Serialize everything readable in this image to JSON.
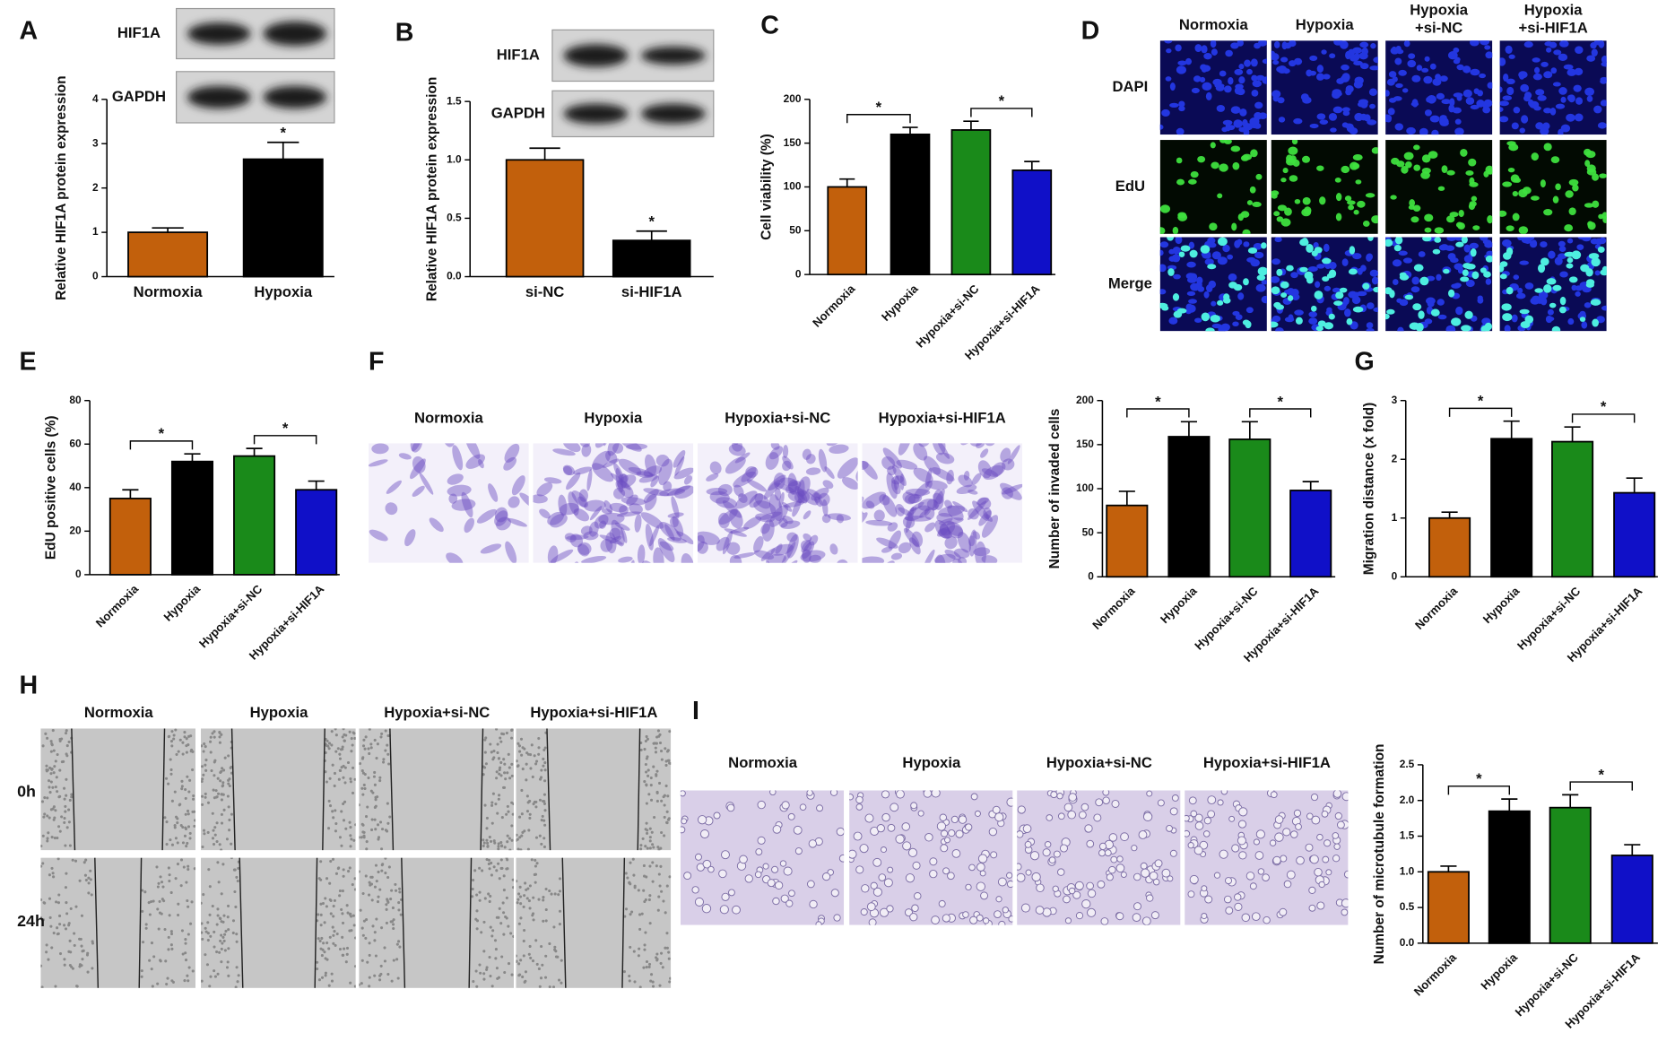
{
  "chart_data": [
    {
      "type": "bar",
      "ylabel": "Relative HIF1A protein expression",
      "categories": [
        "Normoxia",
        "Hypoxia"
      ],
      "values": [
        1.0,
        2.65
      ],
      "errors": [
        0.1,
        0.38
      ],
      "colors": [
        "#c2600c",
        "#000000"
      ],
      "ylim": [
        0,
        4
      ],
      "yticks": [
        0,
        1,
        2,
        3,
        4
      ],
      "annotations": [
        {
          "text": "*",
          "categories": [
            "Hypoxia"
          ]
        }
      ]
    },
    {
      "type": "bar",
      "ylabel": "Relative HIF1A protein expression",
      "categories": [
        "si-NC",
        "si-HIF1A"
      ],
      "values": [
        1.0,
        0.31
      ],
      "errors": [
        0.1,
        0.08
      ],
      "colors": [
        "#c2600c",
        "#000000"
      ],
      "ylim": [
        0,
        1.5
      ],
      "yticks": [
        {
          "value": 0,
          "label": "0.0"
        },
        0.5,
        {
          "value": 1,
          "label": "1.0"
        },
        1.5
      ],
      "annotations": [
        {
          "text": "*",
          "categories": [
            "si-HIF1A"
          ]
        }
      ]
    },
    {
      "type": "bar",
      "ylabel": "Cell viability (%)",
      "categories": [
        "Normoxia",
        "Hypoxia",
        "Hypoxia+si-NC",
        "Hypoxia+si-HIF1A"
      ],
      "values": [
        100,
        160,
        165,
        119
      ],
      "errors": [
        9,
        8,
        10,
        10
      ],
      "colors": [
        "#c2600c",
        "#000000",
        "#1a8a1a",
        "#1010c8"
      ],
      "ylim": [
        0,
        200
      ],
      "yticks": [
        0,
        50,
        100,
        150,
        200
      ],
      "annotations": [
        {
          "text": "*",
          "categories": [
            "Normoxia",
            "Hypoxia"
          ]
        },
        {
          "text": "*",
          "categories": [
            "Hypoxia+si-NC",
            "Hypoxia+si-HIF1A"
          ]
        }
      ]
    },
    {
      "type": "bar",
      "ylabel": "EdU positive cells (%)",
      "categories": [
        "Normoxia",
        "Hypoxia",
        "Hypoxia+si-NC",
        "Hypoxia+si-HIF1A"
      ],
      "values": [
        35,
        52,
        54.5,
        39
      ],
      "errors": [
        4,
        3.5,
        3.5,
        4
      ],
      "colors": [
        "#c2600c",
        "#000000",
        "#1a8a1a",
        "#1010c8"
      ],
      "ylim": [
        0,
        80
      ],
      "yticks": [
        0,
        20,
        40,
        60,
        80
      ],
      "annotations": [
        {
          "text": "*",
          "categories": [
            "Normoxia",
            "Hypoxia"
          ]
        },
        {
          "text": "*",
          "categories": [
            "Hypoxia+si-NC",
            "Hypoxia+si-HIF1A"
          ]
        }
      ]
    },
    {
      "type": "bar",
      "ylabel": "Number of invaded cells",
      "categories": [
        "Normoxia",
        "Hypoxia",
        "Hypoxia+si-NC",
        "Hypoxia+si-HIF1A"
      ],
      "values": [
        81,
        159,
        156,
        98
      ],
      "errors": [
        16,
        17,
        20,
        10
      ],
      "colors": [
        "#c2600c",
        "#000000",
        "#1a8a1a",
        "#1010c8"
      ],
      "ylim": [
        0,
        200
      ],
      "yticks": [
        0,
        50,
        100,
        150,
        200
      ],
      "annotations": [
        {
          "text": "*",
          "categories": [
            "Normoxia",
            "Hypoxia"
          ]
        },
        {
          "text": "*",
          "categories": [
            "Hypoxia+si-NC",
            "Hypoxia+si-HIF1A"
          ]
        }
      ]
    },
    {
      "type": "bar",
      "ylabel": "Migration distance (x fold)",
      "categories": [
        "Normoxia",
        "Hypoxia",
        "Hypoxia+si-NC",
        "Hypoxia+si-HIF1A"
      ],
      "values": [
        1.0,
        2.35,
        2.3,
        1.43
      ],
      "errors": [
        0.1,
        0.3,
        0.25,
        0.25
      ],
      "colors": [
        "#c2600c",
        "#000000",
        "#1a8a1a",
        "#1010c8"
      ],
      "ylim": [
        0,
        3
      ],
      "yticks": [
        0,
        1,
        2,
        3
      ],
      "annotations": [
        {
          "text": "*",
          "categories": [
            "Normoxia",
            "Hypoxia"
          ]
        },
        {
          "text": "*",
          "categories": [
            "Hypoxia+si-NC",
            "Hypoxia+si-HIF1A"
          ]
        }
      ]
    },
    {
      "type": "bar",
      "ylabel": "Number of microtubule formation",
      "categories": [
        "Normoxia",
        "Hypoxia",
        "Hypoxia+si-NC",
        "Hypoxia+si-HIF1A"
      ],
      "values": [
        1.0,
        1.85,
        1.9,
        1.23
      ],
      "errors": [
        0.08,
        0.17,
        0.18,
        0.15
      ],
      "colors": [
        "#c2600c",
        "#000000",
        "#1a8a1a",
        "#1010c8"
      ],
      "ylim": [
        0,
        2.5
      ],
      "yticks": [
        {
          "value": 0,
          "label": "0.0"
        },
        0.5,
        {
          "value": 1,
          "label": "1.0"
        },
        1.5,
        {
          "value": 2,
          "label": "2.0"
        },
        2.5
      ],
      "annotations": [
        {
          "text": "*",
          "categories": [
            "Normoxia",
            "Hypoxia"
          ]
        },
        {
          "text": "*",
          "categories": [
            "Hypoxia+si-NC",
            "Hypoxia+si-HIF1A"
          ]
        }
      ]
    }
  ],
  "figure": {
    "panel_letters": [
      "A",
      "B",
      "C",
      "D",
      "E",
      "F",
      "G",
      "H",
      "I"
    ],
    "blots": [
      [
        "HIF1A",
        "GAPDH"
      ],
      [
        "HIF1A",
        "GAPDH"
      ]
    ],
    "D_columns": [
      [
        "Normoxia"
      ],
      [
        "Hypoxia"
      ],
      [
        "Hypoxia",
        "+si-NC"
      ],
      [
        "Hypoxia",
        "+si-HIF1A"
      ]
    ],
    "D_rows": [
      "DAPI",
      "EdU",
      "Merge"
    ],
    "F_columns": [
      "Normoxia",
      "Hypoxia",
      "Hypoxia+si-NC",
      "Hypoxia+si-HIF1A"
    ],
    "H_columns": [
      "Normoxia",
      "Hypoxia",
      "Hypoxia+si-NC",
      "Hypoxia+si-HIF1A"
    ],
    "H_rows": [
      "0h",
      "24h"
    ],
    "I_columns": [
      "Normoxia",
      "Hypoxia",
      "Hypoxia+si-NC",
      "Hypoxia+si-HIF1A"
    ]
  }
}
